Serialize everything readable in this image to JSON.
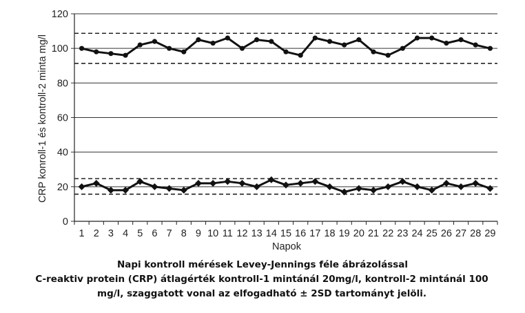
{
  "chart_data": {
    "type": "line",
    "xlabel": "Napok",
    "ylabel": "CRP konroll-1 és kontroll-2 minta mg/l",
    "x": [
      1,
      2,
      3,
      4,
      5,
      6,
      7,
      8,
      9,
      10,
      11,
      12,
      13,
      14,
      15,
      16,
      17,
      18,
      19,
      20,
      21,
      22,
      23,
      24,
      25,
      26,
      27,
      28,
      29
    ],
    "ylim": [
      0,
      120
    ],
    "yticks": [
      0,
      20,
      40,
      60,
      80,
      100,
      120
    ],
    "grid": "horizontal",
    "series": [
      {
        "marker": "circle",
        "color": "#111111",
        "values": [
          100,
          98,
          97,
          96,
          102,
          104,
          100,
          98,
          105,
          103,
          106,
          100,
          105,
          104,
          98,
          96,
          106,
          104,
          102,
          105,
          98,
          96,
          100,
          106,
          106,
          103,
          105,
          102,
          100
        ]
      },
      {
        "marker": "diamond",
        "color": "#111111",
        "values": [
          20,
          22,
          18,
          18,
          23,
          20,
          19,
          18,
          22,
          22,
          23,
          22,
          20,
          24,
          21,
          22,
          23,
          20,
          17,
          19,
          18,
          20,
          23,
          20,
          18,
          22,
          20,
          22,
          19
        ]
      }
    ],
    "reference_lines": {
      "style": "dashed",
      "values": [
        108.7,
        91.3,
        24.7,
        15.7
      ]
    }
  },
  "caption": {
    "line1": "Napi kontroll mérések Levey-Jennings féle ábrázolással",
    "line2": "C-reaktiv protein (CRP) átlagérték kontroll-1 mintánál 20mg/l, kontroll-2 mintánál 100 mg/l, szaggatott vonal az elfogadható ± 2SD tartományt jelöli."
  }
}
